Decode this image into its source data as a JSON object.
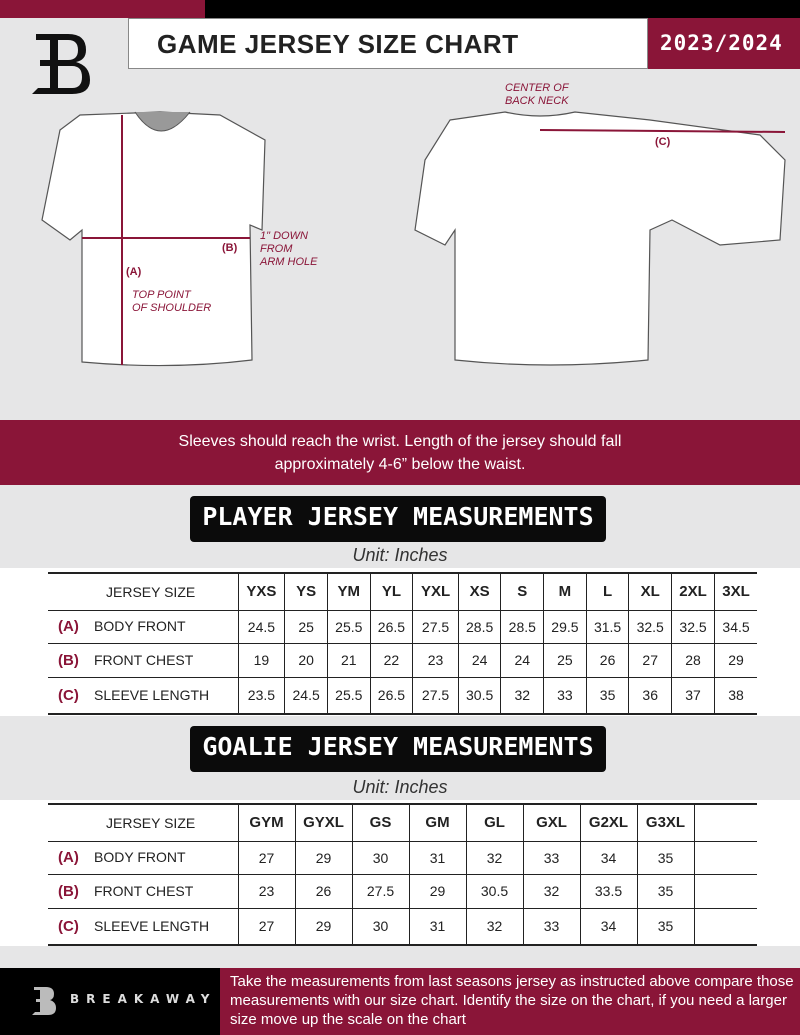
{
  "header": {
    "title": "GAME JERSEY SIZE CHART",
    "season": "2023/2024"
  },
  "diagram": {
    "center_back_neck": "CENTER OF\nBACK NECK",
    "c_marker": "(C)",
    "b_marker": "(B)",
    "a_marker": "(A)",
    "one_inch": "1\" DOWN\nFROM\nARM HOLE",
    "top_shoulder": "TOP POINT\nOF SHOULDER"
  },
  "banner": {
    "line1": "Sleeves should reach the wrist. Length of the jersey should fall",
    "line2": "approximately 4-6” below the waist."
  },
  "player": {
    "title": "PLAYER JERSEY MEASUREMENTS",
    "unit": "Unit: Inches",
    "size_header": "JERSEY SIZE",
    "sizes": [
      "YXS",
      "YS",
      "YM",
      "YL",
      "YXL",
      "XS",
      "S",
      "M",
      "L",
      "XL",
      "2XL",
      "3XL"
    ],
    "rows": [
      {
        "letter": "(A)",
        "label": "BODY FRONT",
        "values": [
          "24.5",
          "25",
          "25.5",
          "26.5",
          "27.5",
          "28.5",
          "28.5",
          "29.5",
          "31.5",
          "32.5",
          "32.5",
          "34.5"
        ]
      },
      {
        "letter": "(B)",
        "label": "FRONT CHEST",
        "values": [
          "19",
          "20",
          "21",
          "22",
          "23",
          "24",
          "24",
          "25",
          "26",
          "27",
          "28",
          "29"
        ]
      },
      {
        "letter": "(C)",
        "label": "SLEEVE LENGTH",
        "values": [
          "23.5",
          "24.5",
          "25.5",
          "26.5",
          "27.5",
          "30.5",
          "32",
          "33",
          "35",
          "36",
          "37",
          "38"
        ]
      }
    ]
  },
  "goalie": {
    "title": "GOALIE JERSEY MEASUREMENTS",
    "unit": "Unit: Inches",
    "size_header": "JERSEY SIZE",
    "sizes": [
      "GYM",
      "GYXL",
      "GS",
      "GM",
      "GL",
      "GXL",
      "G2XL",
      "G3XL",
      ""
    ],
    "rows": [
      {
        "letter": "(A)",
        "label": "BODY FRONT",
        "values": [
          "27",
          "29",
          "30",
          "31",
          "32",
          "33",
          "34",
          "35",
          ""
        ]
      },
      {
        "letter": "(B)",
        "label": "FRONT CHEST",
        "values": [
          "23",
          "26",
          "27.5",
          "29",
          "30.5",
          "32",
          "33.5",
          "35",
          ""
        ]
      },
      {
        "letter": "(C)",
        "label": "SLEEVE LENGTH",
        "values": [
          "27",
          "29",
          "30",
          "31",
          "32",
          "33",
          "34",
          "35",
          ""
        ]
      }
    ]
  },
  "footer": {
    "brand": "BREAKAWAY",
    "note": "Take the measurements from last seasons jersey as instructed above compare those measurements  with our size chart. Identify the size on the chart, if you need a larger size move up the scale on the chart"
  },
  "colors": {
    "accent": "#8a1538",
    "dark": "#000000"
  }
}
